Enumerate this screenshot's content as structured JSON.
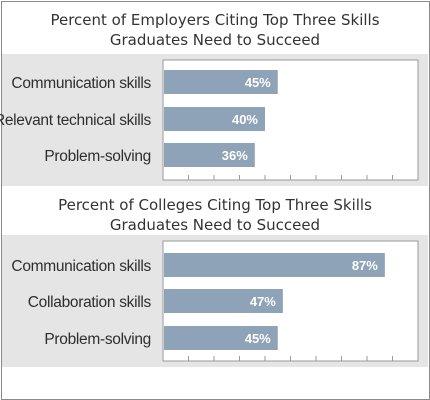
{
  "chart_data": [
    {
      "type": "bar",
      "orientation": "horizontal",
      "title_line1": "Percent of Employers Citing Top Three Skills",
      "title_line2": "Graduates Need to Succeed",
      "categories": [
        "Communication  skills",
        "Relevant technical skills",
        "Problem-solving"
      ],
      "values": [
        45,
        40,
        36
      ],
      "value_labels": [
        "45%",
        "40%",
        "36%"
      ],
      "xlim": [
        0,
        100
      ],
      "bar_color": "#8fa3b8"
    },
    {
      "type": "bar",
      "orientation": "horizontal",
      "title_line1": "Percent of Colleges Citing Top Three Skills",
      "title_line2": "Graduates Need to Succeed",
      "categories": [
        "Communication  skills",
        "Collaboration skills",
        "Problem-solving"
      ],
      "values": [
        87,
        47,
        45
      ],
      "value_labels": [
        "87%",
        "47%",
        "45%"
      ],
      "xlim": [
        0,
        100
      ],
      "bar_color": "#8fa3b8"
    }
  ]
}
